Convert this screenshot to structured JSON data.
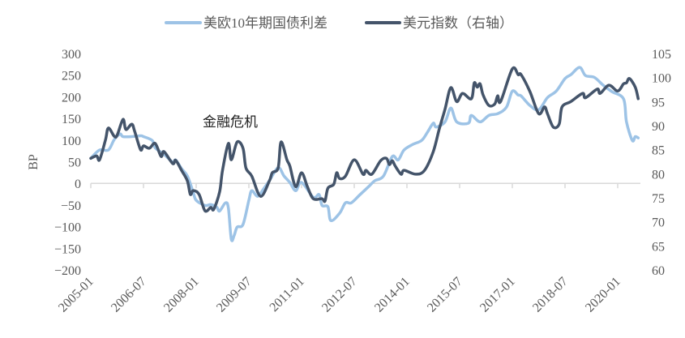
{
  "chart_data": {
    "type": "line",
    "legend_position": "top",
    "annotation": "金融危机",
    "grid": false,
    "x_ticks": [
      "2005-01",
      "2006-07",
      "2008-01",
      "2009-07",
      "2011-01",
      "2012-07",
      "2014-01",
      "2015-07",
      "2017-01",
      "2018-07",
      "2020-01"
    ],
    "y_left": {
      "label": "BP",
      "range": [
        -200,
        300
      ],
      "ticks": [
        "300",
        "250",
        "200",
        "150",
        "100",
        "50",
        "0",
        "-50",
        "-100",
        "-150",
        "-200"
      ]
    },
    "y_right": {
      "label": "",
      "range": [
        60,
        105
      ],
      "ticks": [
        "105",
        "100",
        "95",
        "90",
        "85",
        "80",
        "75",
        "70",
        "65",
        "60"
      ]
    },
    "series": [
      {
        "name": "美欧10年期国债利差",
        "axis": "left",
        "color": "#9dc3e6",
        "points": [
          [
            "2005-01",
            58
          ],
          [
            "2005-04",
            77
          ],
          [
            "2005-07",
            77
          ],
          [
            "2005-09",
            101
          ],
          [
            "2005-11",
            114
          ],
          [
            "2005-12",
            108
          ],
          [
            "2006-03",
            108
          ],
          [
            "2006-06",
            110
          ],
          [
            "2006-07",
            108
          ],
          [
            "2006-10",
            99
          ],
          [
            "2006-11",
            82
          ],
          [
            "2007-02",
            67
          ],
          [
            "2007-05",
            49
          ],
          [
            "2007-06",
            54
          ],
          [
            "2007-08",
            34
          ],
          [
            "2007-10",
            17
          ],
          [
            "2007-12",
            -21
          ],
          [
            "2008-01",
            -39
          ],
          [
            "2008-04",
            -51
          ],
          [
            "2008-06",
            -49
          ],
          [
            "2008-08",
            -55
          ],
          [
            "2008-09",
            -64
          ],
          [
            "2008-11",
            -45
          ],
          [
            "2008-12",
            -57
          ],
          [
            "2009-01",
            -129
          ],
          [
            "2009-02",
            -120
          ],
          [
            "2009-03",
            -101
          ],
          [
            "2009-05",
            -95
          ],
          [
            "2009-07",
            -39
          ],
          [
            "2009-08",
            -17
          ],
          [
            "2009-10",
            -30
          ],
          [
            "2009-12",
            -13
          ],
          [
            "2010-02",
            6
          ],
          [
            "2010-05",
            36
          ],
          [
            "2010-07",
            17
          ],
          [
            "2010-09",
            2
          ],
          [
            "2010-11",
            -17
          ],
          [
            "2011-01",
            2
          ],
          [
            "2011-05",
            -32
          ],
          [
            "2011-07",
            -26
          ],
          [
            "2011-08",
            -51
          ],
          [
            "2011-10",
            -54
          ],
          [
            "2011-11",
            -86
          ],
          [
            "2012-02",
            -69
          ],
          [
            "2012-04",
            -45
          ],
          [
            "2012-06",
            -45
          ],
          [
            "2012-09",
            -26
          ],
          [
            "2012-12",
            -7
          ],
          [
            "2013-02",
            6
          ],
          [
            "2013-05",
            17
          ],
          [
            "2013-08",
            62
          ],
          [
            "2013-10",
            54
          ],
          [
            "2013-12",
            77
          ],
          [
            "2014-03",
            90
          ],
          [
            "2014-06",
            99
          ],
          [
            "2014-08",
            118
          ],
          [
            "2014-10",
            139
          ],
          [
            "2014-11",
            130
          ],
          [
            "2015-02",
            142
          ],
          [
            "2015-04",
            174
          ],
          [
            "2015-06",
            142
          ],
          [
            "2015-10",
            139
          ],
          [
            "2015-11",
            157
          ],
          [
            "2016-02",
            142
          ],
          [
            "2016-05",
            157
          ],
          [
            "2016-08",
            161
          ],
          [
            "2016-11",
            176
          ],
          [
            "2017-01",
            213
          ],
          [
            "2017-03",
            204
          ],
          [
            "2017-04",
            202
          ],
          [
            "2017-07",
            180
          ],
          [
            "2017-10",
            170
          ],
          [
            "2018-01",
            198
          ],
          [
            "2018-04",
            213
          ],
          [
            "2018-07",
            242
          ],
          [
            "2018-09",
            251
          ],
          [
            "2018-12",
            268
          ],
          [
            "2019-02",
            249
          ],
          [
            "2019-05",
            245
          ],
          [
            "2019-08",
            227
          ],
          [
            "2019-11",
            212
          ],
          [
            "2020-03",
            195
          ],
          [
            "2020-04",
            142
          ],
          [
            "2020-06",
            99
          ],
          [
            "2020-07",
            108
          ],
          [
            "2020-08",
            105
          ]
        ]
      },
      {
        "name": "美元指数（右轴）",
        "axis": "right",
        "color": "#44546a",
        "points": [
          [
            "2005-01",
            83.2
          ],
          [
            "2005-03",
            83.7
          ],
          [
            "2005-04",
            82.9
          ],
          [
            "2005-06",
            87
          ],
          [
            "2005-07",
            89.5
          ],
          [
            "2005-09",
            87.8
          ],
          [
            "2005-10",
            88
          ],
          [
            "2005-12",
            91.3
          ],
          [
            "2006-01",
            89.2
          ],
          [
            "2006-03",
            90.3
          ],
          [
            "2006-04",
            88.8
          ],
          [
            "2006-06",
            85
          ],
          [
            "2006-07",
            85.8
          ],
          [
            "2006-09",
            85.3
          ],
          [
            "2006-11",
            86.3
          ],
          [
            "2007-01",
            83.6
          ],
          [
            "2007-02",
            84.6
          ],
          [
            "2007-05",
            82.1
          ],
          [
            "2007-06",
            82.8
          ],
          [
            "2007-08",
            80.7
          ],
          [
            "2007-10",
            78.5
          ],
          [
            "2007-11",
            75.7
          ],
          [
            "2007-12",
            76.5
          ],
          [
            "2008-02",
            75.7
          ],
          [
            "2008-04",
            72.3
          ],
          [
            "2008-06",
            73
          ],
          [
            "2008-07",
            72.6
          ],
          [
            "2008-09",
            76.2
          ],
          [
            "2008-10",
            80.7
          ],
          [
            "2008-12",
            86.3
          ],
          [
            "2009-01",
            82.9
          ],
          [
            "2009-03",
            86.6
          ],
          [
            "2009-05",
            85.3
          ],
          [
            "2009-06",
            81.2
          ],
          [
            "2009-08",
            79.5
          ],
          [
            "2009-11",
            75.3
          ],
          [
            "2010-02",
            78.5
          ],
          [
            "2010-03",
            80.2
          ],
          [
            "2010-05",
            81.2
          ],
          [
            "2010-06",
            86.6
          ],
          [
            "2010-08",
            82.9
          ],
          [
            "2010-09",
            81.6
          ],
          [
            "2010-11",
            77.3
          ],
          [
            "2011-01",
            80.2
          ],
          [
            "2011-03",
            77.3
          ],
          [
            "2011-05",
            74.8
          ],
          [
            "2011-08",
            74.8
          ],
          [
            "2011-09",
            74.3
          ],
          [
            "2011-10",
            77
          ],
          [
            "2011-12",
            77.8
          ],
          [
            "2012-01",
            80.2
          ],
          [
            "2012-02",
            79
          ],
          [
            "2012-04",
            79.5
          ],
          [
            "2012-07",
            82.9
          ],
          [
            "2012-10",
            79.9
          ],
          [
            "2012-11",
            80.7
          ],
          [
            "2013-01",
            79.9
          ],
          [
            "2013-04",
            82.7
          ],
          [
            "2013-06",
            83.2
          ],
          [
            "2013-07",
            81.9
          ],
          [
            "2013-08",
            82.7
          ],
          [
            "2013-09",
            81.6
          ],
          [
            "2013-11",
            79.9
          ],
          [
            "2013-12",
            80.7
          ],
          [
            "2014-04",
            79.9
          ],
          [
            "2014-07",
            80.7
          ],
          [
            "2014-10",
            84.6
          ],
          [
            "2014-12",
            89.2
          ],
          [
            "2015-02",
            93.4
          ],
          [
            "2015-04",
            97.9
          ],
          [
            "2015-06",
            95
          ],
          [
            "2015-08",
            96.7
          ],
          [
            "2015-11",
            95.6
          ],
          [
            "2015-12",
            98.9
          ],
          [
            "2016-01",
            98
          ],
          [
            "2016-02",
            98.7
          ],
          [
            "2016-03",
            96.4
          ],
          [
            "2016-05",
            94.2
          ],
          [
            "2016-07",
            94.5
          ],
          [
            "2016-08",
            96.2
          ],
          [
            "2016-09",
            95
          ],
          [
            "2017-01",
            101.8
          ],
          [
            "2017-03",
            100.6
          ],
          [
            "2017-04",
            100.6
          ],
          [
            "2017-07",
            97.1
          ],
          [
            "2017-10",
            92.5
          ],
          [
            "2017-12",
            93.9
          ],
          [
            "2018-01",
            92.5
          ],
          [
            "2018-03",
            89.7
          ],
          [
            "2018-05",
            90.3
          ],
          [
            "2018-06",
            93.9
          ],
          [
            "2018-09",
            95
          ],
          [
            "2019-01",
            96.7
          ],
          [
            "2019-02",
            95.8
          ],
          [
            "2019-06",
            97.6
          ],
          [
            "2019-07",
            96.7
          ],
          [
            "2019-10",
            98.4
          ],
          [
            "2020-01",
            97.2
          ],
          [
            "2020-03",
            98.7
          ],
          [
            "2020-04",
            98.9
          ],
          [
            "2020-05",
            99.8
          ],
          [
            "2020-07",
            98
          ],
          [
            "2020-08",
            95.6
          ]
        ]
      }
    ]
  }
}
